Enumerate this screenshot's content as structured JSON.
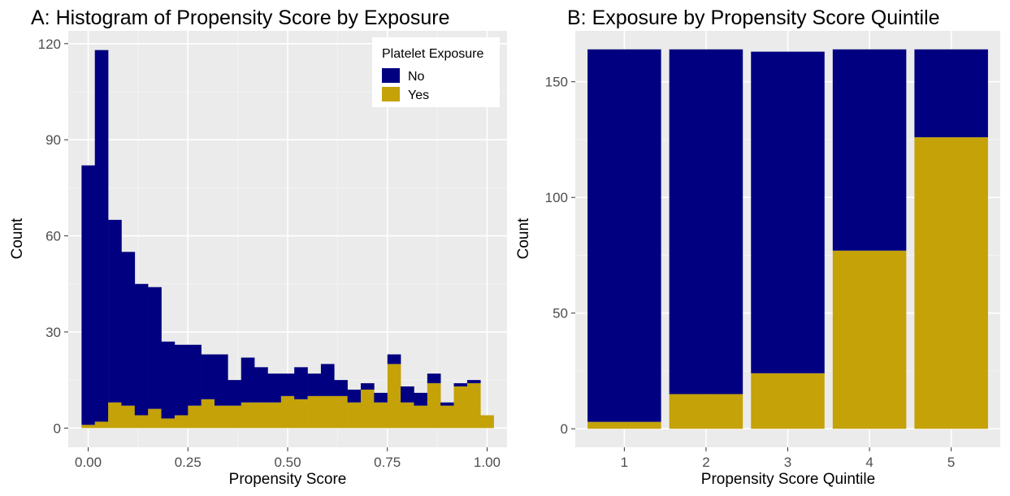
{
  "chart_data": [
    {
      "type": "bar",
      "subtype": "stacked-histogram",
      "title": "A: Histogram of Propensity Score by Exposure",
      "xlabel": "Propensity Score",
      "ylabel": "Count",
      "xlim": [
        -0.05,
        1.05
      ],
      "ylim": [
        -6,
        124
      ],
      "x_ticks": [
        0.0,
        0.25,
        0.5,
        0.75,
        1.0
      ],
      "x_tick_labels": [
        "0.00",
        "0.25",
        "0.50",
        "0.75",
        "1.00"
      ],
      "y_ticks": [
        0,
        30,
        60,
        90,
        120
      ],
      "y_tick_labels": [
        "0",
        "30",
        "60",
        "90",
        "120"
      ],
      "bin_width": 0.0333,
      "bin_centers": [
        0.0,
        0.0333,
        0.0667,
        0.1,
        0.1333,
        0.1667,
        0.2,
        0.2333,
        0.2667,
        0.3,
        0.3333,
        0.3667,
        0.4,
        0.4333,
        0.4667,
        0.5,
        0.5333,
        0.5667,
        0.6,
        0.6333,
        0.6667,
        0.7,
        0.7333,
        0.7667,
        0.8,
        0.8333,
        0.8667,
        0.9,
        0.9333,
        0.9667,
        1.0
      ],
      "series": [
        {
          "name": "No",
          "values": [
            81,
            116,
            57,
            48,
            41,
            38,
            24,
            22,
            19,
            14,
            16,
            8,
            14,
            11,
            9,
            7,
            10,
            7,
            10,
            5,
            4,
            2,
            3,
            3,
            5,
            4,
            3,
            1,
            1,
            1,
            0
          ]
        },
        {
          "name": "Yes",
          "values": [
            1,
            2,
            8,
            7,
            4,
            6,
            3,
            4,
            7,
            9,
            7,
            7,
            8,
            8,
            8,
            10,
            9,
            10,
            10,
            10,
            8,
            12,
            8,
            20,
            8,
            7,
            14,
            7,
            13,
            14,
            4
          ]
        }
      ],
      "grid": true,
      "legend": {
        "title": "Platelet Exposure",
        "position": "top-right",
        "entries": [
          "No",
          "Yes"
        ]
      },
      "colors": {
        "No": "#000080",
        "Yes": "#c4a208"
      }
    },
    {
      "type": "bar",
      "subtype": "stacked",
      "title": "B: Exposure by Propensity Score Quintile",
      "xlabel": "Propensity Score Quintile",
      "ylabel": "Count",
      "categories": [
        "1",
        "2",
        "3",
        "4",
        "5"
      ],
      "ylim": [
        -8,
        172
      ],
      "y_ticks": [
        0,
        50,
        100,
        150
      ],
      "y_tick_labels": [
        "0",
        "50",
        "100",
        "150"
      ],
      "series": [
        {
          "name": "No",
          "values": [
            161,
            149,
            139,
            87,
            38
          ]
        },
        {
          "name": "Yes",
          "values": [
            3,
            15,
            24,
            77,
            126
          ]
        }
      ],
      "grid": true,
      "colors": {
        "No": "#000080",
        "Yes": "#c4a208"
      }
    }
  ]
}
